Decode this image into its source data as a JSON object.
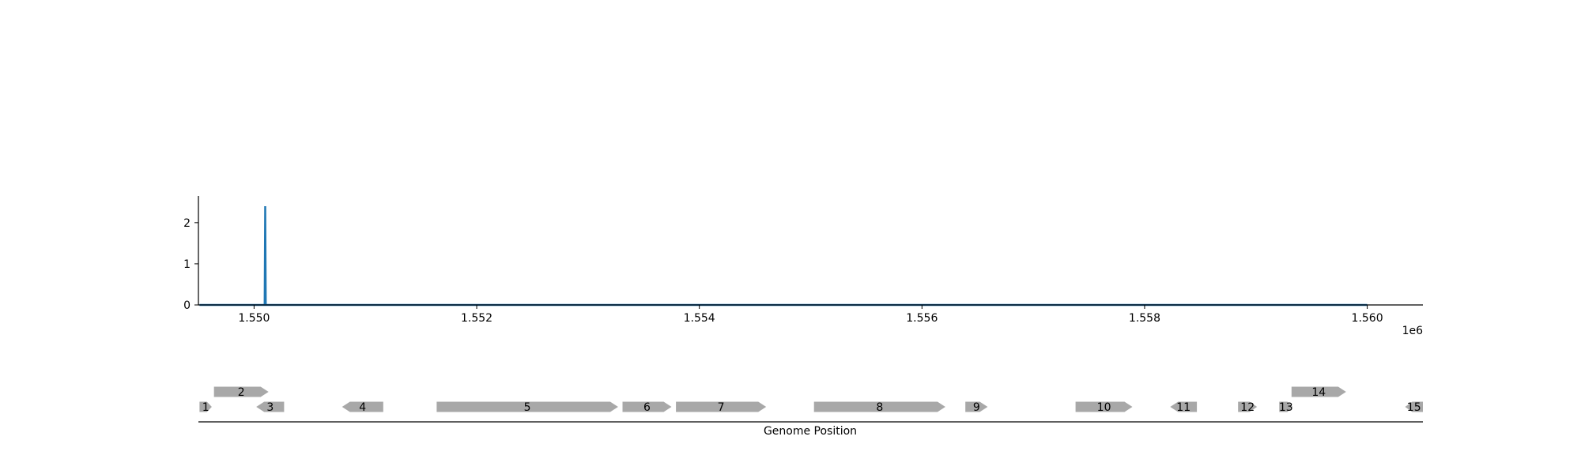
{
  "chart_data": [
    {
      "type": "line",
      "title": "",
      "xlabel": "",
      "ylabel": "",
      "x_offset_label": "1e6",
      "xlim": [
        1549500,
        1560500
      ],
      "ylim": [
        0,
        2.65
      ],
      "x_ticks": [
        {
          "value": 1550000,
          "label": "1.550"
        },
        {
          "value": 1552000,
          "label": "1.552"
        },
        {
          "value": 1554000,
          "label": "1.554"
        },
        {
          "value": 1556000,
          "label": "1.556"
        },
        {
          "value": 1558000,
          "label": "1.558"
        },
        {
          "value": 1560000,
          "label": "1.560"
        }
      ],
      "y_ticks": [
        {
          "value": 0,
          "label": "0"
        },
        {
          "value": 1,
          "label": "1"
        },
        {
          "value": 2,
          "label": "2"
        }
      ],
      "grid": false,
      "series": [
        {
          "color": "#1f77b4",
          "x": [
            1549510,
            1550095,
            1550100,
            1550105,
            1560000
          ],
          "y": [
            0,
            0,
            2.4,
            0,
            0
          ]
        }
      ]
    },
    {
      "type": "gene-track",
      "xlabel": "Genome Position",
      "xlim": [
        1549500,
        1560500
      ],
      "feature_color": "#a8a8a8",
      "features": [
        {
          "label": "1",
          "start": 1549510,
          "end": 1549620,
          "strand": 1,
          "level": 0
        },
        {
          "label": "2",
          "start": 1549640,
          "end": 1550130,
          "strand": 1,
          "level": 1
        },
        {
          "label": "3",
          "start": 1550020,
          "end": 1550270,
          "strand": -1,
          "level": 0
        },
        {
          "label": "4",
          "start": 1550790,
          "end": 1551160,
          "strand": -1,
          "level": 0
        },
        {
          "label": "5",
          "start": 1551640,
          "end": 1553270,
          "strand": 1,
          "level": 0
        },
        {
          "label": "6",
          "start": 1553310,
          "end": 1553750,
          "strand": 1,
          "level": 0
        },
        {
          "label": "7",
          "start": 1553790,
          "end": 1554600,
          "strand": 1,
          "level": 0
        },
        {
          "label": "8",
          "start": 1555030,
          "end": 1556210,
          "strand": 1,
          "level": 0
        },
        {
          "label": "9",
          "start": 1556390,
          "end": 1556590,
          "strand": 1,
          "level": 0
        },
        {
          "label": "10",
          "start": 1557380,
          "end": 1557890,
          "strand": 1,
          "level": 0
        },
        {
          "label": "11",
          "start": 1558230,
          "end": 1558470,
          "strand": -1,
          "level": 0
        },
        {
          "label": "12",
          "start": 1558840,
          "end": 1559010,
          "strand": 1,
          "level": 0
        },
        {
          "label": "13",
          "start": 1559210,
          "end": 1559330,
          "strand": 1,
          "level": 0
        },
        {
          "label": "14",
          "start": 1559320,
          "end": 1559810,
          "strand": 1,
          "level": 1
        },
        {
          "label": "15",
          "start": 1560340,
          "end": 1560500,
          "strand": -1,
          "level": 0
        }
      ]
    }
  ]
}
